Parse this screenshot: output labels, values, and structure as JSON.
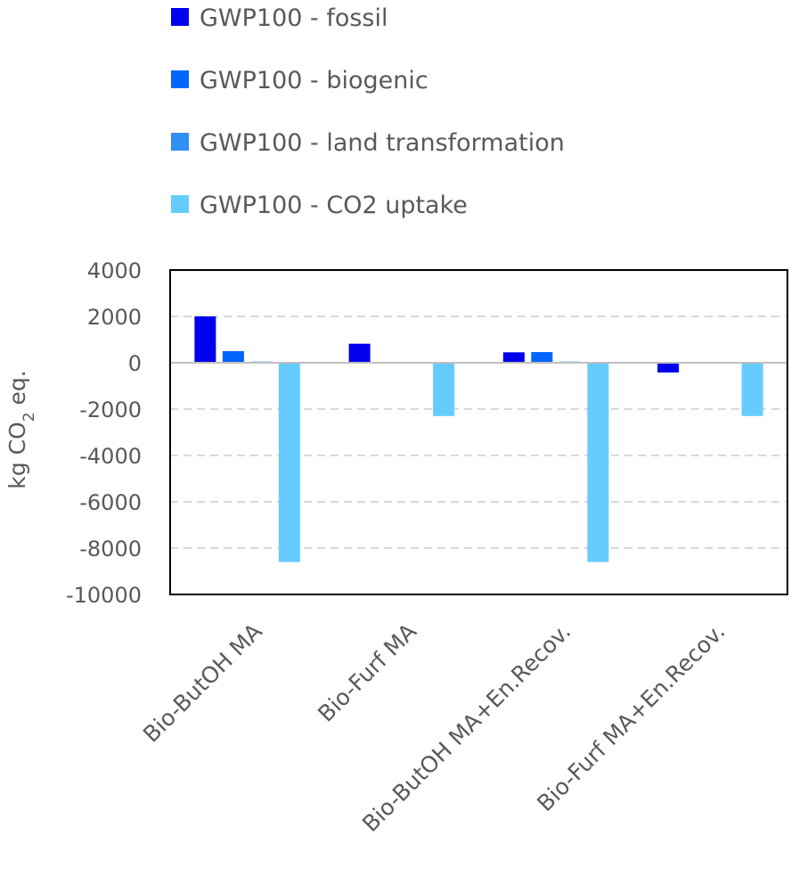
{
  "chart_data": {
    "type": "bar",
    "categories": [
      "Bio-ButOH MA",
      "Bio-Furf MA",
      "Bio-ButOH MA+En.Recov.",
      "Bio-Furf MA+En.Recov."
    ],
    "series": [
      {
        "name": "GWP100 - fossil",
        "color": "#0000ee",
        "values": [
          2000,
          820,
          450,
          -420
        ]
      },
      {
        "name": "GWP100 - biogenic",
        "color": "#0066ff",
        "values": [
          500,
          0,
          460,
          0
        ]
      },
      {
        "name": "GWP100 - land transformation",
        "color": "#2f8ff5",
        "values": [
          50,
          0,
          50,
          0
        ]
      },
      {
        "name": "GWP100 - CO2 uptake",
        "color": "#66ccff",
        "values": [
          -8600,
          -2300,
          -8600,
          -2300
        ]
      }
    ],
    "ylabel_main": "kg CO",
    "ylabel_sub": "2",
    "ylabel_tail": " eq.",
    "ylim": [
      -10000,
      4000
    ],
    "yticks": [
      "4000",
      "2000",
      "0",
      "-2000",
      "-4000",
      "-6000",
      "-8000",
      "-10000"
    ],
    "grid": "dashed horizontal",
    "legend_position": "top"
  }
}
